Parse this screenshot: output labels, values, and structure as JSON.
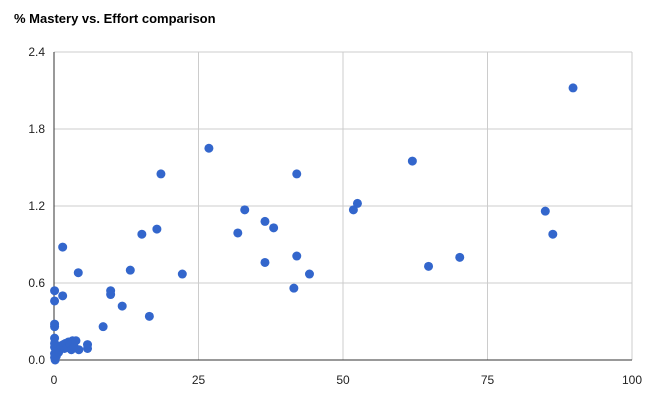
{
  "chart_data": {
    "type": "scatter",
    "title": "% Mastery vs. Effort comparison",
    "xlabel": "",
    "ylabel": "",
    "xlim": [
      0,
      100
    ],
    "ylim": [
      0.0,
      2.4
    ],
    "x_ticks": [
      "0",
      "25",
      "50",
      "75",
      "100"
    ],
    "y_ticks": [
      "0.0",
      "0.6",
      "1.2",
      "1.8",
      "2.4"
    ],
    "grid": true,
    "legend": "none",
    "colors": {
      "point": "#3366cc",
      "grid": "#cccccc",
      "axis": "#333333"
    },
    "points": [
      {
        "x": 0.1,
        "y": 0.54
      },
      {
        "x": 0.1,
        "y": 0.46
      },
      {
        "x": 0.1,
        "y": 0.28
      },
      {
        "x": 0.1,
        "y": 0.26
      },
      {
        "x": 0.1,
        "y": 0.17
      },
      {
        "x": 0.1,
        "y": 0.13
      },
      {
        "x": 0.1,
        "y": 0.1
      },
      {
        "x": 0.1,
        "y": 0.05
      },
      {
        "x": 0.1,
        "y": 0.02
      },
      {
        "x": 0.2,
        "y": 0.0
      },
      {
        "x": 0.4,
        "y": 0.03
      },
      {
        "x": 0.8,
        "y": 0.06
      },
      {
        "x": 1.0,
        "y": 0.08
      },
      {
        "x": 1.2,
        "y": 0.11
      },
      {
        "x": 1.5,
        "y": 0.88
      },
      {
        "x": 1.5,
        "y": 0.5
      },
      {
        "x": 1.6,
        "y": 0.12
      },
      {
        "x": 1.8,
        "y": 0.09
      },
      {
        "x": 2.0,
        "y": 0.13
      },
      {
        "x": 2.3,
        "y": 0.1
      },
      {
        "x": 2.5,
        "y": 0.14
      },
      {
        "x": 2.8,
        "y": 0.12
      },
      {
        "x": 3.0,
        "y": 0.08
      },
      {
        "x": 3.2,
        "y": 0.15
      },
      {
        "x": 3.5,
        "y": 0.1
      },
      {
        "x": 3.8,
        "y": 0.15
      },
      {
        "x": 4.2,
        "y": 0.68
      },
      {
        "x": 4.3,
        "y": 0.08
      },
      {
        "x": 5.8,
        "y": 0.12
      },
      {
        "x": 5.8,
        "y": 0.09
      },
      {
        "x": 8.5,
        "y": 0.26
      },
      {
        "x": 9.8,
        "y": 0.54
      },
      {
        "x": 9.8,
        "y": 0.51
      },
      {
        "x": 11.8,
        "y": 0.42
      },
      {
        "x": 13.2,
        "y": 0.7
      },
      {
        "x": 15.2,
        "y": 0.98
      },
      {
        "x": 16.5,
        "y": 0.34
      },
      {
        "x": 17.8,
        "y": 1.02
      },
      {
        "x": 18.5,
        "y": 1.45
      },
      {
        "x": 22.2,
        "y": 0.67
      },
      {
        "x": 26.8,
        "y": 1.65
      },
      {
        "x": 31.8,
        "y": 0.99
      },
      {
        "x": 33.0,
        "y": 1.17
      },
      {
        "x": 36.5,
        "y": 1.08
      },
      {
        "x": 36.5,
        "y": 0.76
      },
      {
        "x": 38.0,
        "y": 1.03
      },
      {
        "x": 41.5,
        "y": 0.56
      },
      {
        "x": 42.0,
        "y": 1.45
      },
      {
        "x": 42.0,
        "y": 0.81
      },
      {
        "x": 44.2,
        "y": 0.67
      },
      {
        "x": 51.8,
        "y": 1.17
      },
      {
        "x": 52.5,
        "y": 1.22
      },
      {
        "x": 62.0,
        "y": 1.55
      },
      {
        "x": 64.8,
        "y": 0.73
      },
      {
        "x": 70.2,
        "y": 0.8
      },
      {
        "x": 85.0,
        "y": 1.16
      },
      {
        "x": 86.3,
        "y": 0.98
      },
      {
        "x": 89.8,
        "y": 2.12
      }
    ]
  }
}
